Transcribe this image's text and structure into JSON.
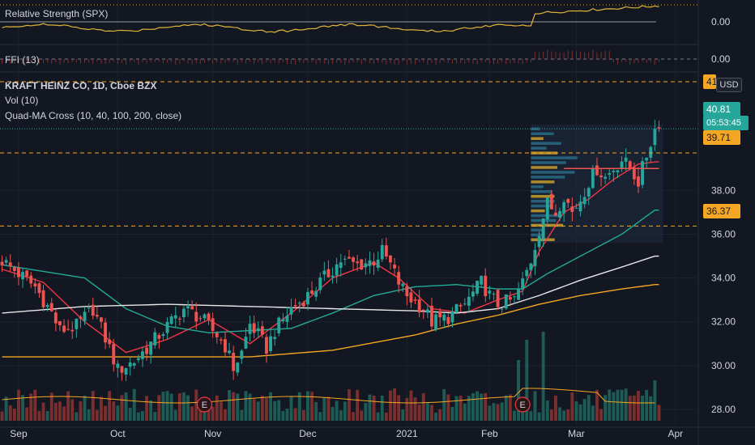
{
  "panes": {
    "rs_label": "Relative Strength (SPX)",
    "ffi_label": "FFI (13)",
    "rs_value": "0.00",
    "ffi_value": "0.00"
  },
  "header": {
    "title": "KRAFT HEINZ CO, 1D, Cboe BZX",
    "vol_label": "Vol (10)",
    "ma_label": "Quad-MA Cross (10, 40, 100, 200, close)",
    "currency_button": "USD"
  },
  "price_tags": {
    "last": "40.81",
    "countdown": "05:53:45",
    "upper": "39.71",
    "lower": "36.37",
    "top_cut": "41"
  },
  "colors": {
    "background": "#131722",
    "up": "#26a69a",
    "down": "#ef5350",
    "ma10": "#f23645",
    "ma40": "#22ab94",
    "ma100": "#e8e8e8",
    "ma200": "#f5a623",
    "volume_ma": "#f5a623",
    "rs_line": "#e0b33a",
    "level_line": "#f5a623",
    "vp_box": "#1d2b3f",
    "earnings": "#f23645"
  },
  "chart_data": {
    "type": "candlestick",
    "title": "KRAFT HEINZ CO, 1D, Cboe BZX",
    "y_axis": {
      "ticks": [
        "28.00",
        "30.00",
        "32.00",
        "34.00",
        "36.00",
        "38.00"
      ],
      "ylim": [
        27.3,
        42.0
      ]
    },
    "x_axis": {
      "ticks": [
        "Sep",
        "Oct",
        "Nov",
        "Dec",
        "2021",
        "Feb",
        "Mar",
        "Apr"
      ]
    },
    "earnings_markers": [
      {
        "label": "E",
        "date": "Oct 29"
      },
      {
        "label": "E",
        "date": "Feb 11"
      }
    ],
    "key_prices": [
      {
        "label": "upper level",
        "value": 39.71
      },
      {
        "label": "lower level",
        "value": 36.37
      },
      {
        "label": "last",
        "value": 40.81
      }
    ],
    "close_path": [
      [
        0,
        34.8
      ],
      [
        4,
        34.2
      ],
      [
        8,
        33.6
      ],
      [
        12,
        32.4
      ],
      [
        14,
        31.6
      ],
      [
        18,
        31.8
      ],
      [
        22,
        32.6
      ],
      [
        26,
        30.8
      ],
      [
        28,
        29.8
      ],
      [
        32,
        30.2
      ],
      [
        36,
        31.0
      ],
      [
        40,
        31.8
      ],
      [
        44,
        32.6
      ],
      [
        48,
        32.2
      ],
      [
        52,
        31.4
      ],
      [
        54,
        30.9
      ],
      [
        56,
        29.9
      ],
      [
        58,
        30.6
      ],
      [
        60,
        31.9
      ],
      [
        62,
        31.4
      ],
      [
        64,
        30.8
      ],
      [
        66,
        31.6
      ],
      [
        70,
        32.6
      ],
      [
        74,
        33.2
      ],
      [
        78,
        34.0
      ],
      [
        82,
        34.8
      ],
      [
        86,
        34.6
      ],
      [
        90,
        34.8
      ],
      [
        92,
        35.2
      ],
      [
        94,
        34.6
      ],
      [
        96,
        33.8
      ],
      [
        98,
        33.2
      ],
      [
        102,
        32.6
      ],
      [
        104,
        32.0
      ],
      [
        108,
        32.2
      ],
      [
        112,
        32.8
      ],
      [
        116,
        33.8
      ],
      [
        118,
        33.2
      ],
      [
        120,
        32.8
      ],
      [
        124,
        33.0
      ],
      [
        126,
        33.8
      ],
      [
        128,
        34.8
      ],
      [
        130,
        36.2
      ],
      [
        132,
        37.4
      ],
      [
        134,
        37.0
      ],
      [
        136,
        37.8
      ],
      [
        138,
        37.0
      ],
      [
        140,
        37.6
      ],
      [
        142,
        38.4
      ],
      [
        144,
        39.0
      ],
      [
        146,
        38.6
      ],
      [
        148,
        39.0
      ],
      [
        150,
        39.4
      ],
      [
        152,
        39.0
      ],
      [
        154,
        38.4
      ],
      [
        156,
        39.6
      ],
      [
        158,
        40.8
      ]
    ],
    "series": [
      {
        "name": "MA 10",
        "color": "#f23645",
        "path": [
          [
            0,
            34.4
          ],
          [
            10,
            33.8
          ],
          [
            20,
            32.0
          ],
          [
            30,
            30.6
          ],
          [
            40,
            31.2
          ],
          [
            50,
            32.1
          ],
          [
            60,
            31.0
          ],
          [
            70,
            32.4
          ],
          [
            80,
            34.0
          ],
          [
            90,
            34.7
          ],
          [
            96,
            34.0
          ],
          [
            104,
            32.6
          ],
          [
            112,
            32.4
          ],
          [
            120,
            33.0
          ],
          [
            126,
            33.4
          ],
          [
            130,
            35.2
          ],
          [
            136,
            37.0
          ],
          [
            142,
            37.6
          ],
          [
            148,
            38.5
          ],
          [
            154,
            39.2
          ],
          [
            158,
            39.3
          ]
        ]
      },
      {
        "name": "MA 40",
        "color": "#22ab94",
        "path": [
          [
            0,
            34.6
          ],
          [
            20,
            34.0
          ],
          [
            30,
            32.6
          ],
          [
            40,
            31.8
          ],
          [
            50,
            31.5
          ],
          [
            60,
            31.6
          ],
          [
            70,
            31.7
          ],
          [
            80,
            32.4
          ],
          [
            90,
            33.2
          ],
          [
            100,
            33.6
          ],
          [
            110,
            33.7
          ],
          [
            120,
            33.5
          ],
          [
            126,
            33.5
          ],
          [
            132,
            34.2
          ],
          [
            140,
            35.0
          ],
          [
            150,
            36.0
          ],
          [
            158,
            37.1
          ]
        ]
      },
      {
        "name": "MA 100",
        "color": "#e8e8e8",
        "path": [
          [
            0,
            32.4
          ],
          [
            20,
            32.7
          ],
          [
            40,
            32.8
          ],
          [
            60,
            32.7
          ],
          [
            80,
            32.6
          ],
          [
            100,
            32.5
          ],
          [
            110,
            32.4
          ],
          [
            120,
            32.6
          ],
          [
            130,
            33.2
          ],
          [
            140,
            33.9
          ],
          [
            150,
            34.5
          ],
          [
            158,
            35.0
          ]
        ]
      },
      {
        "name": "MA 200",
        "color": "#f5a623",
        "path": [
          [
            0,
            30.4
          ],
          [
            20,
            30.4
          ],
          [
            40,
            30.4
          ],
          [
            60,
            30.4
          ],
          [
            80,
            30.7
          ],
          [
            100,
            31.4
          ],
          [
            110,
            31.9
          ],
          [
            120,
            32.3
          ],
          [
            130,
            32.8
          ],
          [
            140,
            33.2
          ],
          [
            150,
            33.5
          ],
          [
            158,
            33.7
          ]
        ]
      }
    ]
  }
}
